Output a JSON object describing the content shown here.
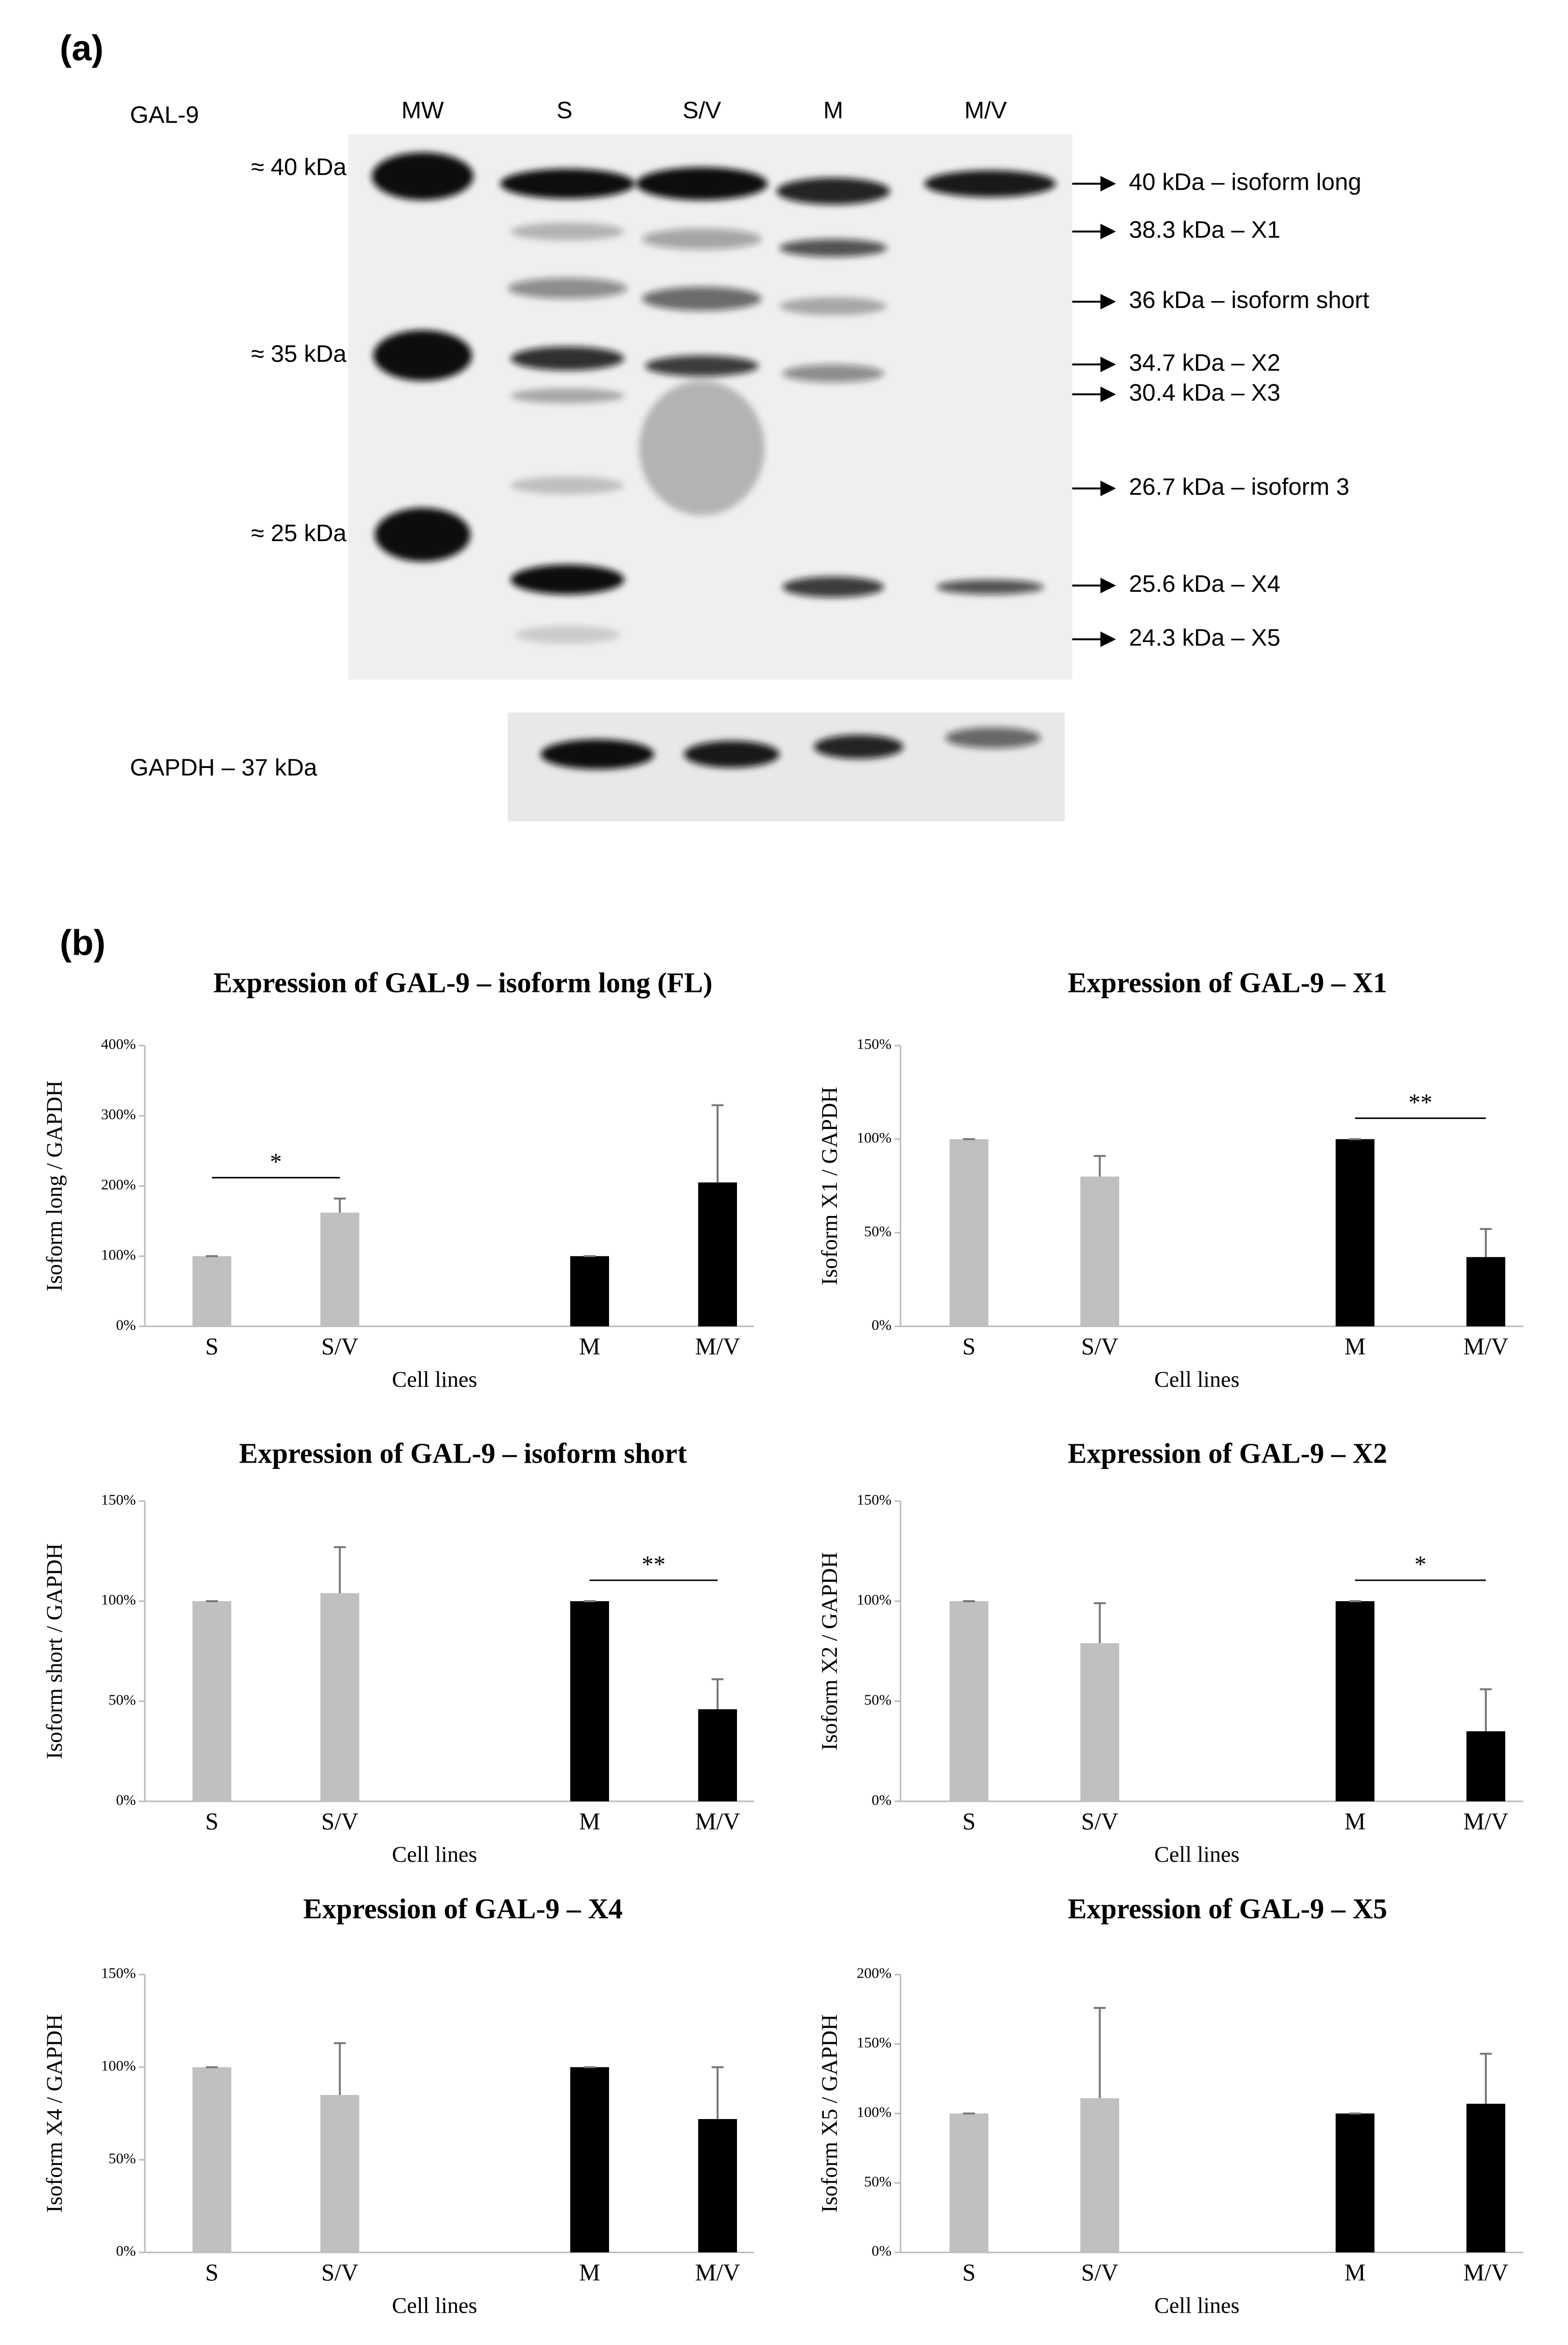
{
  "blot": {
    "panel_label": "(a)",
    "protein": "GAL-9",
    "lanes": [
      "MW",
      "S",
      "S/V",
      "M",
      "M/V"
    ],
    "markers": [
      "≈ 40 kDa",
      "≈ 35 kDa",
      "≈ 25 kDa"
    ],
    "bands": [
      "40 kDa – isoform long",
      "38.3 kDa – X1",
      "36 kDa – isoform short",
      "34.7 kDa – X2",
      "30.4 kDa – X3",
      "26.7 kDa – isoform 3",
      "25.6 kDa – X4",
      "24.3 kDa – X5"
    ],
    "loading": "GAPDH – 37 kDa"
  },
  "panel_b_label": "(b)",
  "chart_data": [
    {
      "type": "bar",
      "title": "Expression of GAL-9 – isoform long (FL)",
      "y_label": "Isoform long / GAPDH",
      "x_label": "Cell lines",
      "categories": [
        "S",
        "S/V",
        "M",
        "M/V"
      ],
      "values": [
        100,
        162,
        100,
        205
      ],
      "errors": [
        0,
        20,
        0,
        110
      ],
      "colors": [
        "#c0c0c0",
        "#c0c0c0",
        "#000000",
        "#000000"
      ],
      "ylim": [
        0,
        400
      ],
      "yticks": [
        {
          "value": 0,
          "label": "0%"
        },
        {
          "value": 100,
          "label": "100%"
        },
        {
          "value": 200,
          "label": "200%"
        },
        {
          "value": 300,
          "label": "300%"
        },
        {
          "value": 400,
          "label": "400%"
        }
      ],
      "annotations": [
        {
          "text": "*",
          "between": [
            "S",
            "S/V"
          ]
        }
      ]
    },
    {
      "type": "bar",
      "title": "Expression of GAL-9 – X1",
      "y_label": "Isoform X1 / GAPDH",
      "x_label": "Cell lines",
      "categories": [
        "S",
        "S/V",
        "M",
        "M/V"
      ],
      "values": [
        100,
        80,
        100,
        37
      ],
      "errors": [
        0,
        11,
        0,
        15
      ],
      "colors": [
        "#c0c0c0",
        "#c0c0c0",
        "#000000",
        "#000000"
      ],
      "ylim": [
        0,
        150
      ],
      "yticks": [
        {
          "value": 0,
          "label": "0%"
        },
        {
          "value": 50,
          "label": "50%"
        },
        {
          "value": 100,
          "label": "100%"
        },
        {
          "value": 150,
          "label": "150%"
        }
      ],
      "annotations": [
        {
          "text": "**",
          "between": [
            "M",
            "M/V"
          ]
        }
      ]
    },
    {
      "type": "bar",
      "title": "Expression of GAL-9 – isoform short",
      "y_label": "Isoform short / GAPDH",
      "x_label": "Cell lines",
      "categories": [
        "S",
        "S/V",
        "M",
        "M/V"
      ],
      "values": [
        100,
        104,
        100,
        46
      ],
      "errors": [
        0,
        23,
        0,
        15
      ],
      "colors": [
        "#c0c0c0",
        "#c0c0c0",
        "#000000",
        "#000000"
      ],
      "ylim": [
        0,
        150
      ],
      "yticks": [
        {
          "value": 0,
          "label": "0%"
        },
        {
          "value": 50,
          "label": "50%"
        },
        {
          "value": 100,
          "label": "100%"
        },
        {
          "value": 150,
          "label": "150%"
        }
      ],
      "annotations": [
        {
          "text": "**",
          "between": [
            "M",
            "M/V"
          ]
        }
      ]
    },
    {
      "type": "bar",
      "title": "Expression of GAL-9 – X2",
      "y_label": "Isoform X2 / GAPDH",
      "x_label": "Cell lines",
      "categories": [
        "S",
        "S/V",
        "M",
        "M/V"
      ],
      "values": [
        100,
        79,
        100,
        35
      ],
      "errors": [
        0,
        20,
        0,
        21
      ],
      "colors": [
        "#c0c0c0",
        "#c0c0c0",
        "#000000",
        "#000000"
      ],
      "ylim": [
        0,
        150
      ],
      "yticks": [
        {
          "value": 0,
          "label": "0%"
        },
        {
          "value": 50,
          "label": "50%"
        },
        {
          "value": 100,
          "label": "100%"
        },
        {
          "value": 150,
          "label": "150%"
        }
      ],
      "annotations": [
        {
          "text": "*",
          "between": [
            "M",
            "M/V"
          ]
        }
      ]
    },
    {
      "type": "bar",
      "title": "Expression of GAL-9 – X4",
      "y_label": "Isoform X4 / GAPDH",
      "x_label": "Cell lines",
      "categories": [
        "S",
        "S/V",
        "M",
        "M/V"
      ],
      "values": [
        100,
        85,
        100,
        72
      ],
      "errors": [
        0,
        28,
        0,
        28
      ],
      "colors": [
        "#c0c0c0",
        "#c0c0c0",
        "#000000",
        "#000000"
      ],
      "ylim": [
        0,
        150
      ],
      "yticks": [
        {
          "value": 0,
          "label": "0%"
        },
        {
          "value": 50,
          "label": "50%"
        },
        {
          "value": 100,
          "label": "100%"
        },
        {
          "value": 150,
          "label": "150%"
        }
      ]
    },
    {
      "type": "bar",
      "title": "Expression of GAL-9 – X5",
      "y_label": "Isoform X5 / GAPDH",
      "x_label": "Cell lines",
      "categories": [
        "S",
        "S/V",
        "M",
        "M/V"
      ],
      "values": [
        100,
        111,
        100,
        107
      ],
      "errors": [
        0,
        65,
        0,
        36
      ],
      "colors": [
        "#c0c0c0",
        "#c0c0c0",
        "#000000",
        "#000000"
      ],
      "ylim": [
        0,
        200
      ],
      "yticks": [
        {
          "value": 0,
          "label": "0%"
        },
        {
          "value": 50,
          "label": "50%"
        },
        {
          "value": 100,
          "label": "100%"
        },
        {
          "value": 150,
          "label": "150%"
        },
        {
          "value": 200,
          "label": "200%"
        }
      ]
    }
  ]
}
